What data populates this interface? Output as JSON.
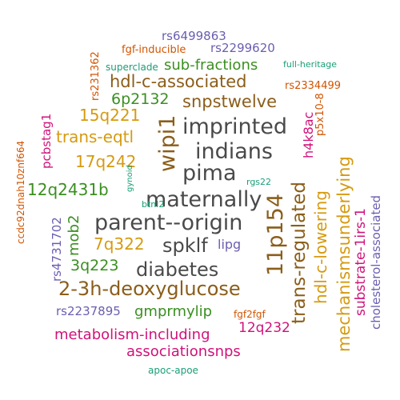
{
  "palette": {
    "gray": "#4a4a4a",
    "brown": "#8b5e1a",
    "gold": "#d69a10",
    "green": "#3a8f20",
    "teal": "#1b9e77",
    "magenta": "#d1127a",
    "purple": "#6a5fb0",
    "orange": "#d35400"
  },
  "words": [
    "maternally",
    "parent--origin",
    "pima",
    "imprinted",
    "indians",
    "spklf",
    "diabetes",
    "2-3h-deoxyglucose",
    "11p154",
    "wipi1",
    "trans-regulated",
    "hdl-c-lowering",
    "mechanismsunderlying",
    "snpstwelve",
    "hdl-c-associated",
    "15q221",
    "17q242",
    "trans-eqtl",
    "12q2431b",
    "7q322",
    "3q223",
    "6p2132",
    "sub-fractions",
    "substrate-1irs-1",
    "gmprmylip",
    "metabolism-including",
    "associationsnps",
    "12q232",
    "mob2",
    "h4k8ac",
    "pcbstag1",
    "rs2237895",
    "rs4731702",
    "cholesterol-associated",
    "rs6499863",
    "rs2299620",
    "fgf-inducible",
    "rs231362",
    "rs2334499",
    "p5x10-8",
    "ccdc92dnah10znf664",
    "fgf2fgf",
    "lipg",
    "apoc-apoe",
    "superclade",
    "full-heritage",
    "btnl2",
    "rgs22",
    "gynoid"
  ]
}
